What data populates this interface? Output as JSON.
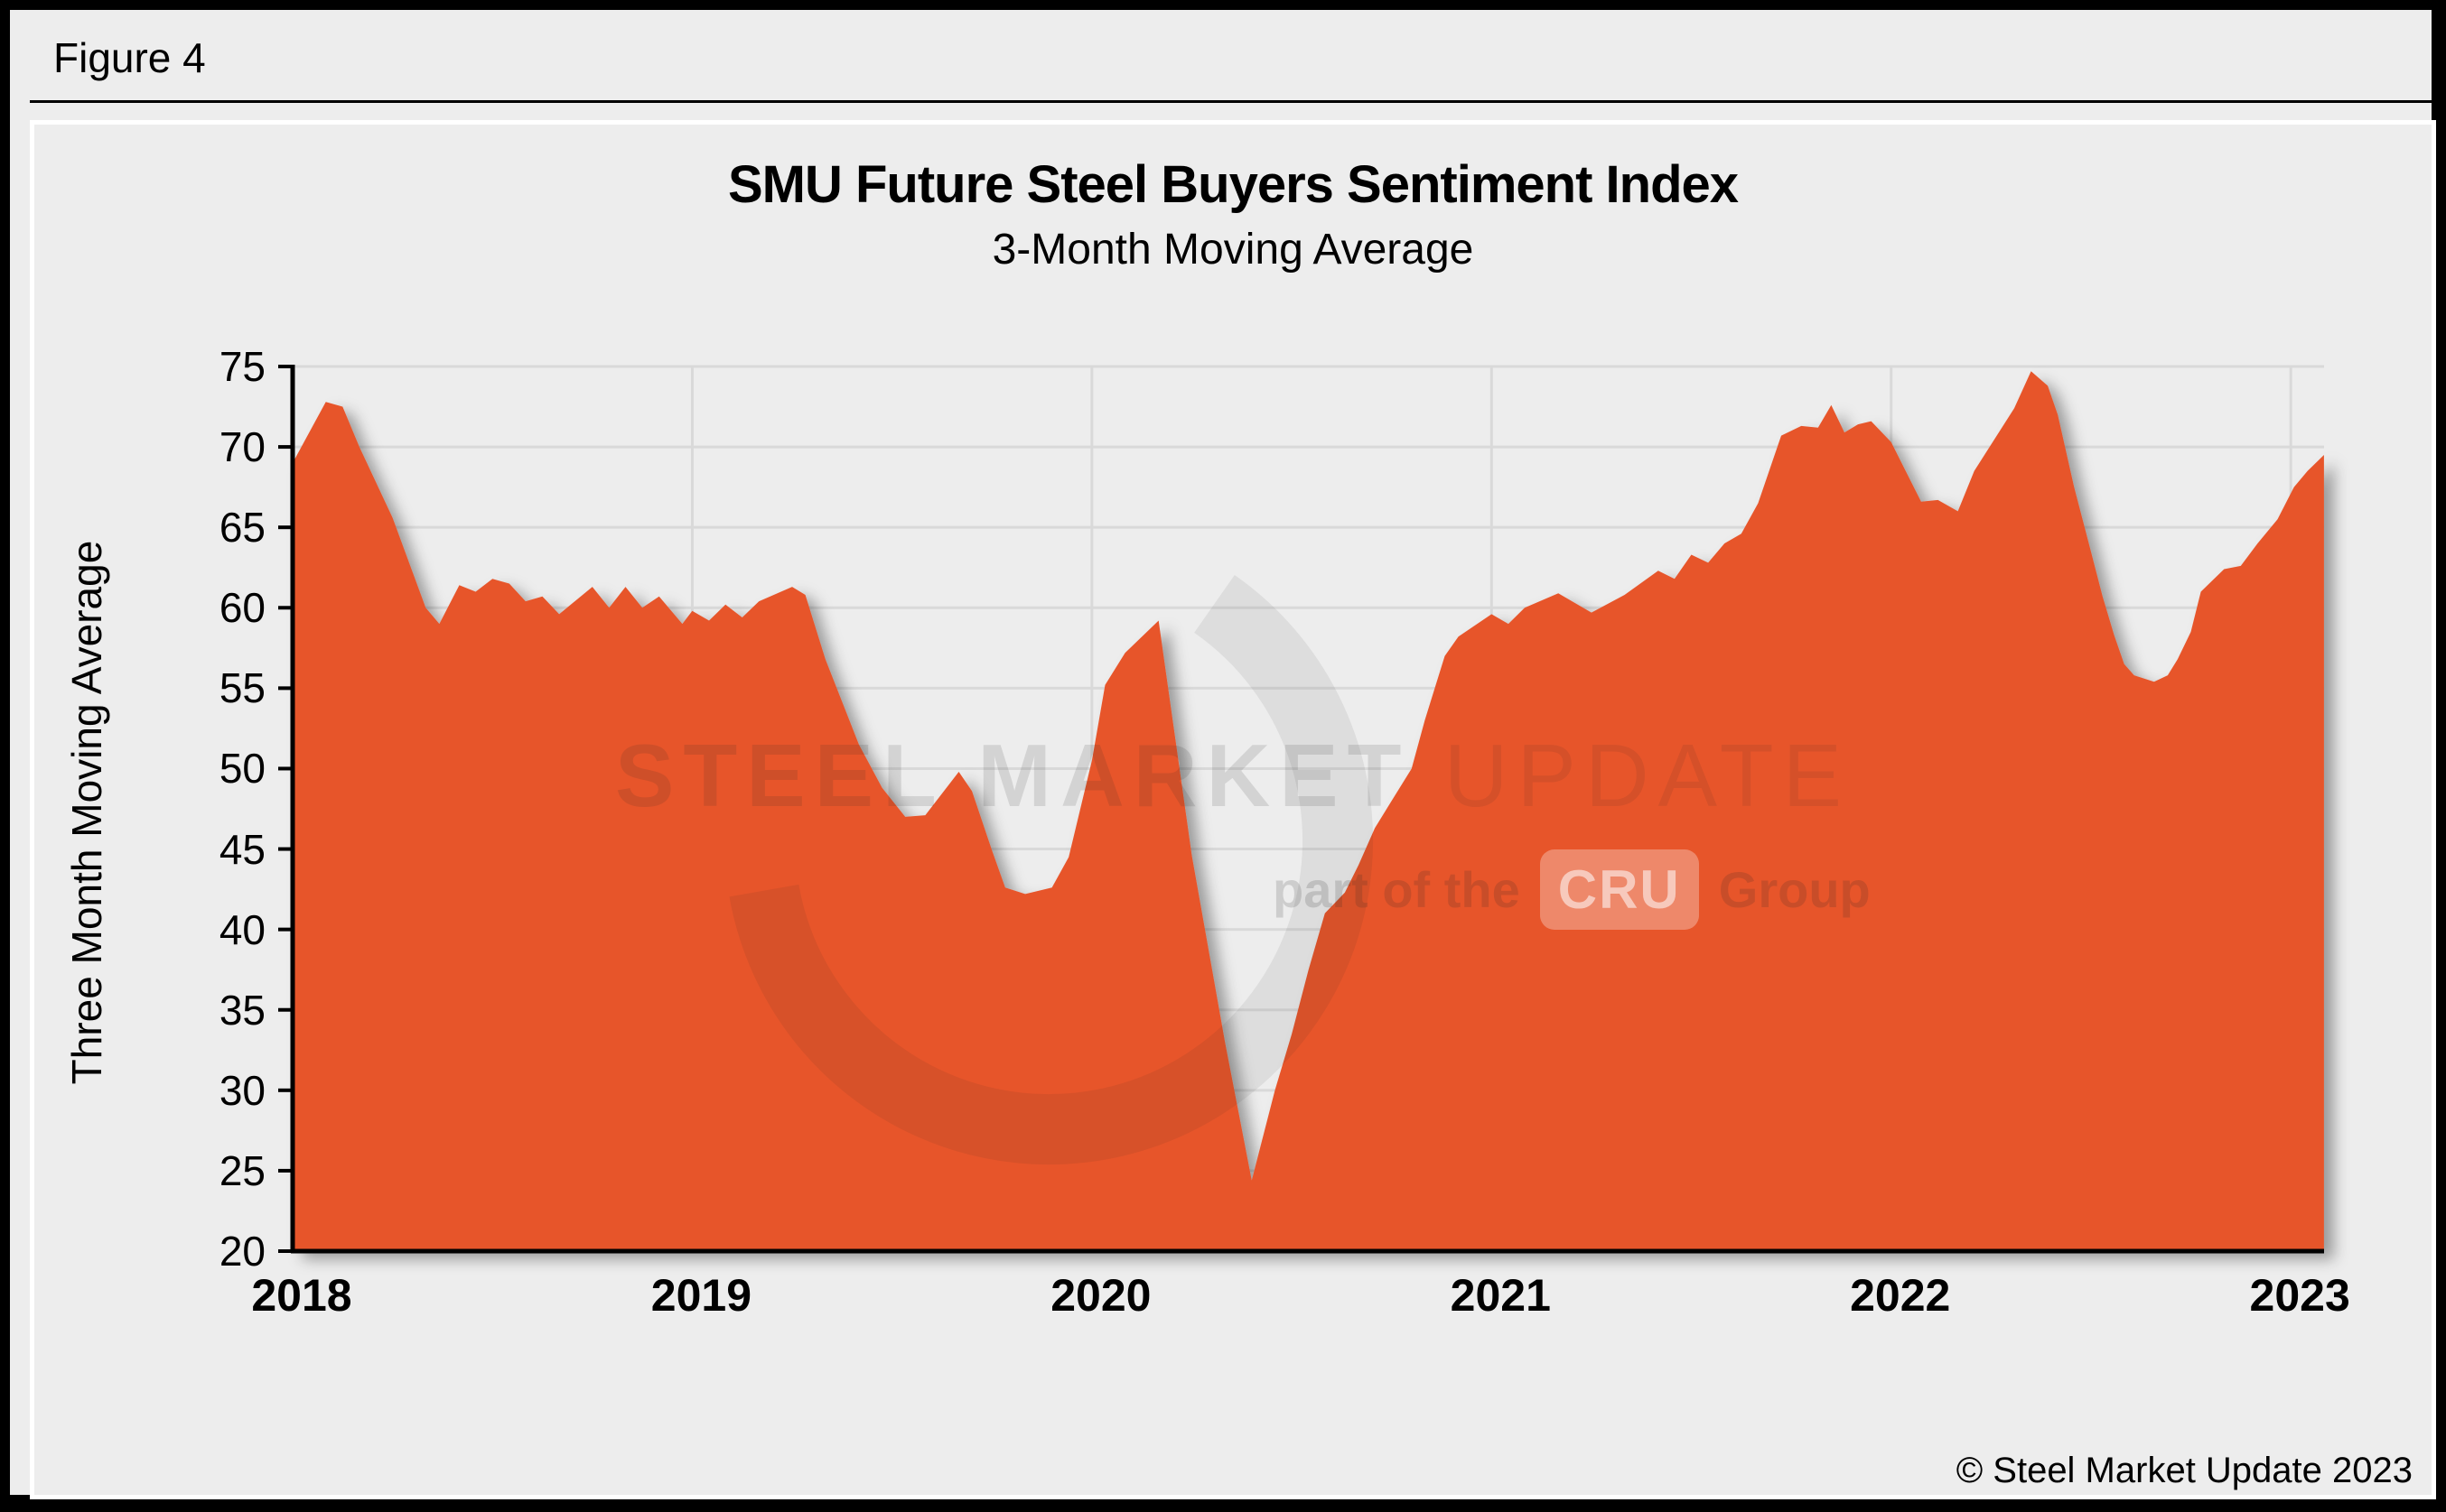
{
  "figure_label": "Figure 4",
  "header": {
    "title": "SMU Future Steel Buyers Sentiment Index",
    "subtitle": "3-Month Moving Average"
  },
  "y_axis": {
    "title": "Three Month Moving Average",
    "ticks": [
      20,
      25,
      30,
      35,
      40,
      45,
      50,
      55,
      60,
      65,
      70,
      75
    ]
  },
  "x_axis": {
    "ticks": [
      2018,
      2019,
      2020,
      2021,
      2022,
      2023
    ]
  },
  "watermark": {
    "line1_bold": "STEEL MARKET",
    "line1_light": "UPDATE",
    "line2_prefix": "part of the",
    "line2_box": "CRU",
    "line2_suffix": "Group"
  },
  "copyright": "© Steel Market Update 2023",
  "colors": {
    "series_fill": "#E7552B",
    "background": "#EDEDED",
    "gridline": "#D9D9D9",
    "axis": "#000000",
    "card_border": "#FFFFFF",
    "frame": "#000000"
  },
  "chart_data": {
    "type": "area",
    "title": "SMU Future Steel Buyers Sentiment Index",
    "subtitle": "3-Month Moving Average",
    "ylabel": "Three Month Moving Average",
    "xlabel": "",
    "ylim": [
      20,
      75
    ],
    "xlim": [
      2018.0,
      2023.0833
    ],
    "grid": true,
    "legend": false,
    "series_name": "Future Steel Buyers Sentiment Index (3-month moving average)",
    "points": [
      [
        2018.0,
        69.0
      ],
      [
        2018.083,
        72.8
      ],
      [
        2018.125,
        72.5
      ],
      [
        2018.167,
        70.0
      ],
      [
        2018.25,
        65.6
      ],
      [
        2018.333,
        60.0
      ],
      [
        2018.367,
        59.0
      ],
      [
        2018.417,
        61.4
      ],
      [
        2018.458,
        61.0
      ],
      [
        2018.5,
        61.8
      ],
      [
        2018.542,
        61.5
      ],
      [
        2018.583,
        60.4
      ],
      [
        2018.625,
        60.7
      ],
      [
        2018.667,
        59.6
      ],
      [
        2018.75,
        61.3
      ],
      [
        2018.792,
        60.0
      ],
      [
        2018.833,
        61.3
      ],
      [
        2018.875,
        60.0
      ],
      [
        2018.917,
        60.7
      ],
      [
        2018.975,
        59.0
      ],
      [
        2019.0,
        59.8
      ],
      [
        2019.042,
        59.2
      ],
      [
        2019.083,
        60.2
      ],
      [
        2019.125,
        59.4
      ],
      [
        2019.167,
        60.4
      ],
      [
        2019.25,
        61.3
      ],
      [
        2019.283,
        60.8
      ],
      [
        2019.333,
        56.8
      ],
      [
        2019.417,
        51.5
      ],
      [
        2019.475,
        48.8
      ],
      [
        2019.533,
        47.0
      ],
      [
        2019.583,
        47.1
      ],
      [
        2019.667,
        49.8
      ],
      [
        2019.7,
        48.6
      ],
      [
        2019.75,
        44.9
      ],
      [
        2019.783,
        42.6
      ],
      [
        2019.833,
        42.2
      ],
      [
        2019.9,
        42.6
      ],
      [
        2019.942,
        44.5
      ],
      [
        2020.0,
        50.5
      ],
      [
        2020.033,
        55.2
      ],
      [
        2020.083,
        57.2
      ],
      [
        2020.167,
        59.2
      ],
      [
        2020.25,
        44.6
      ],
      [
        2020.333,
        33.0
      ],
      [
        2020.4,
        24.4
      ],
      [
        2020.458,
        30.0
      ],
      [
        2020.5,
        33.5
      ],
      [
        2020.542,
        37.5
      ],
      [
        2020.583,
        41.0
      ],
      [
        2020.633,
        42.3
      ],
      [
        2020.667,
        44.0
      ],
      [
        2020.708,
        46.3
      ],
      [
        2020.75,
        48.0
      ],
      [
        2020.8,
        50.0
      ],
      [
        2020.833,
        53.0
      ],
      [
        2020.883,
        57.0
      ],
      [
        2020.917,
        58.2
      ],
      [
        2021.0,
        59.6
      ],
      [
        2021.042,
        59.0
      ],
      [
        2021.083,
        60.0
      ],
      [
        2021.167,
        60.9
      ],
      [
        2021.25,
        59.7
      ],
      [
        2021.333,
        60.8
      ],
      [
        2021.417,
        62.3
      ],
      [
        2021.458,
        61.8
      ],
      [
        2021.5,
        63.3
      ],
      [
        2021.542,
        62.8
      ],
      [
        2021.583,
        64.0
      ],
      [
        2021.625,
        64.6
      ],
      [
        2021.667,
        66.5
      ],
      [
        2021.725,
        70.7
      ],
      [
        2021.775,
        71.3
      ],
      [
        2021.817,
        71.2
      ],
      [
        2021.85,
        72.6
      ],
      [
        2021.883,
        70.9
      ],
      [
        2021.917,
        71.4
      ],
      [
        2021.95,
        71.6
      ],
      [
        2022.0,
        70.3
      ],
      [
        2022.075,
        66.6
      ],
      [
        2022.117,
        66.7
      ],
      [
        2022.167,
        66.0
      ],
      [
        2022.208,
        68.5
      ],
      [
        2022.308,
        72.4
      ],
      [
        2022.35,
        74.7
      ],
      [
        2022.392,
        73.8
      ],
      [
        2022.417,
        72.0
      ],
      [
        2022.458,
        67.5
      ],
      [
        2022.5,
        63.5
      ],
      [
        2022.529,
        60.7
      ],
      [
        2022.558,
        58.3
      ],
      [
        2022.583,
        56.5
      ],
      [
        2022.608,
        55.8
      ],
      [
        2022.658,
        55.4
      ],
      [
        2022.692,
        55.8
      ],
      [
        2022.717,
        56.8
      ],
      [
        2022.75,
        58.5
      ],
      [
        2022.775,
        61.0
      ],
      [
        2022.833,
        62.4
      ],
      [
        2022.875,
        62.6
      ],
      [
        2022.917,
        64.0
      ],
      [
        2022.967,
        65.5
      ],
      [
        2023.008,
        67.5
      ],
      [
        2023.042,
        68.5
      ],
      [
        2023.083,
        69.5
      ]
    ]
  }
}
